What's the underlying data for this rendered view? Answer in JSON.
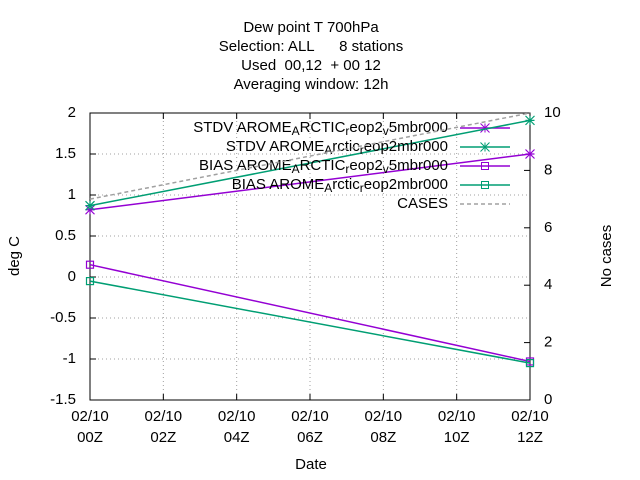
{
  "chart_data": {
    "type": "line",
    "title": [
      "Dew point T 700hPa",
      "Selection: ALL      8 stations",
      "Used  00,12  + 00 12",
      "Averaging window: 12h"
    ],
    "xlabel": "Date",
    "ylabel": "deg C",
    "y2label": "No cases",
    "x": [
      0,
      12
    ],
    "xlim": [
      0,
      12
    ],
    "xticks": [
      {
        "value": 0,
        "label": "02/10 00Z"
      },
      {
        "value": 2,
        "label": "02/10 02Z"
      },
      {
        "value": 4,
        "label": "02/10 04Z"
      },
      {
        "value": 6,
        "label": "02/10 06Z"
      },
      {
        "value": 8,
        "label": "02/10 08Z"
      },
      {
        "value": 10,
        "label": "02/10 10Z"
      },
      {
        "value": 12,
        "label": "02/10 12Z"
      }
    ],
    "ylim": [
      -1.5,
      2
    ],
    "yticks": [
      -1.5,
      -1,
      -0.5,
      0,
      0.5,
      1,
      1.5,
      2
    ],
    "y2lim": [
      0,
      10
    ],
    "y2ticks": [
      0,
      2,
      4,
      6,
      8,
      10
    ],
    "grid": true,
    "legend": "top-right",
    "series": [
      {
        "name": "STDV AROME_ARCTIC_reop2_v5mbr000",
        "color": "#9400d3",
        "marker": "star",
        "values": [
          0.82,
          1.5
        ]
      },
      {
        "name": "STDV AROME_Arctic_reop2mbr000",
        "color": "#009e73",
        "marker": "star",
        "values": [
          0.87,
          1.91
        ]
      },
      {
        "name": "BIAS AROME_ARCTIC_reop2_v5mbr000",
        "color": "#9400d3",
        "marker": "square",
        "values": [
          0.15,
          -1.03
        ]
      },
      {
        "name": "BIAS AROME_Arctic_reop2mbr000",
        "color": "#009e73",
        "marker": "square",
        "values": [
          -0.05,
          -1.05
        ]
      },
      {
        "name": "CASES",
        "color": "#a0a0a0",
        "marker": "none",
        "dash": true,
        "axis": "y2",
        "values": [
          7,
          10
        ]
      }
    ]
  }
}
